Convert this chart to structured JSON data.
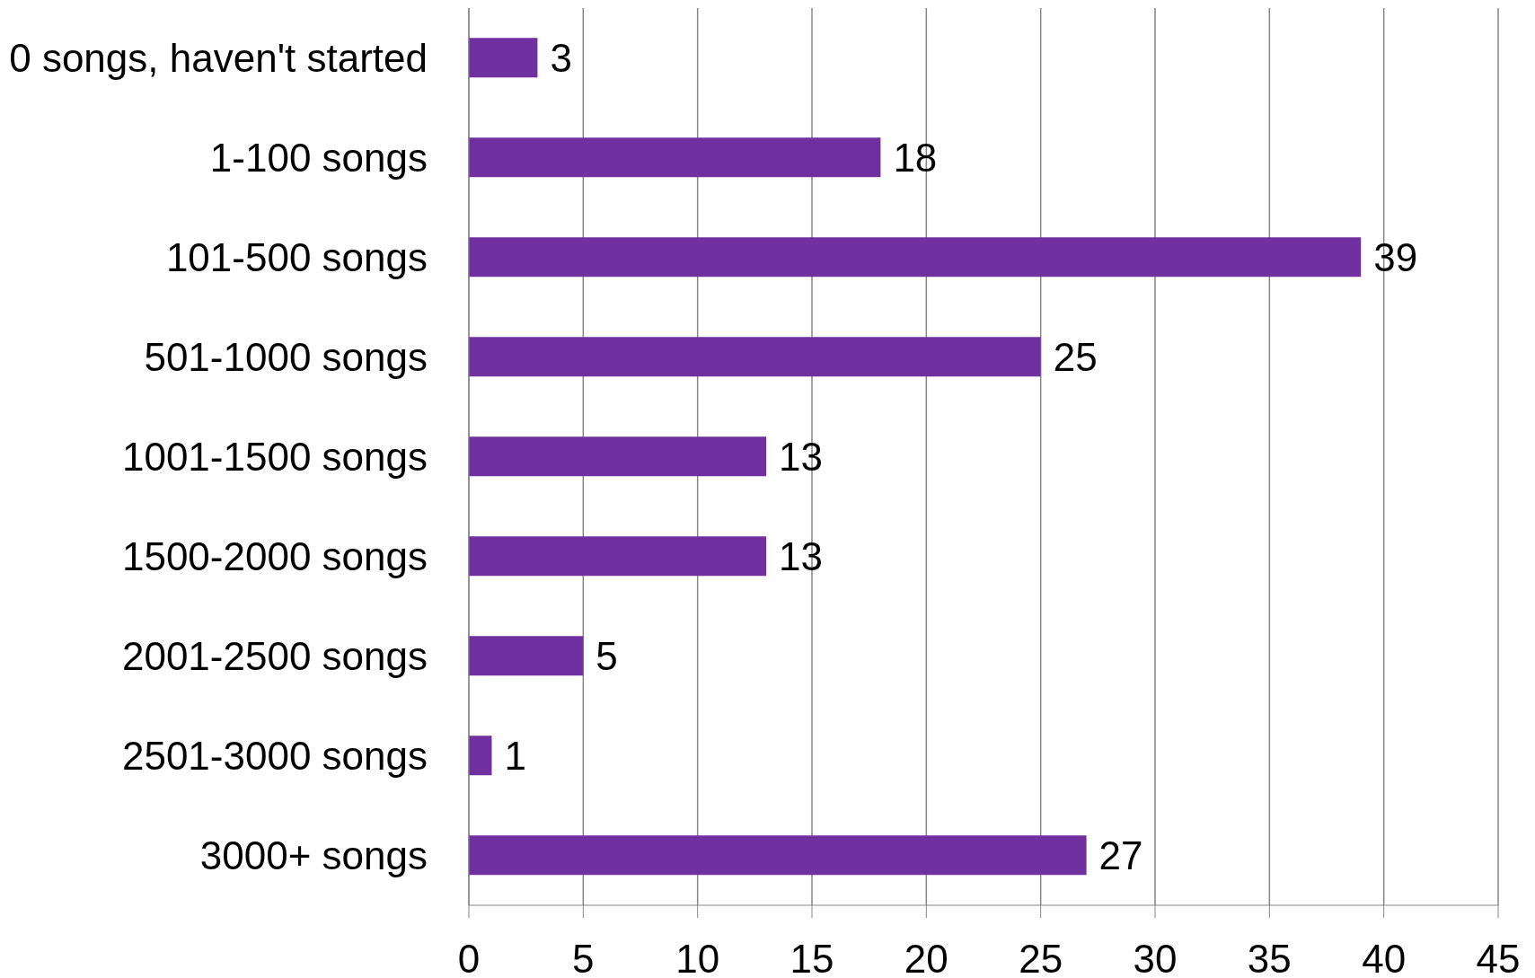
{
  "chart_data": {
    "type": "bar",
    "orientation": "horizontal",
    "categories": [
      "0 songs, haven't started",
      "1-100 songs",
      "101-500 songs",
      "501-1000 songs",
      "1001-1500 songs",
      "1500-2000 songs",
      "2001-2500 songs",
      "2501-3000 songs",
      "3000+ songs"
    ],
    "values": [
      3,
      18,
      39,
      25,
      13,
      13,
      5,
      1,
      27
    ],
    "color": "#7030a0",
    "xlim": [
      0,
      45
    ],
    "xticks": [
      0,
      5,
      10,
      15,
      20,
      25,
      30,
      35,
      40,
      45
    ],
    "grid": "x",
    "data_labels": true
  }
}
